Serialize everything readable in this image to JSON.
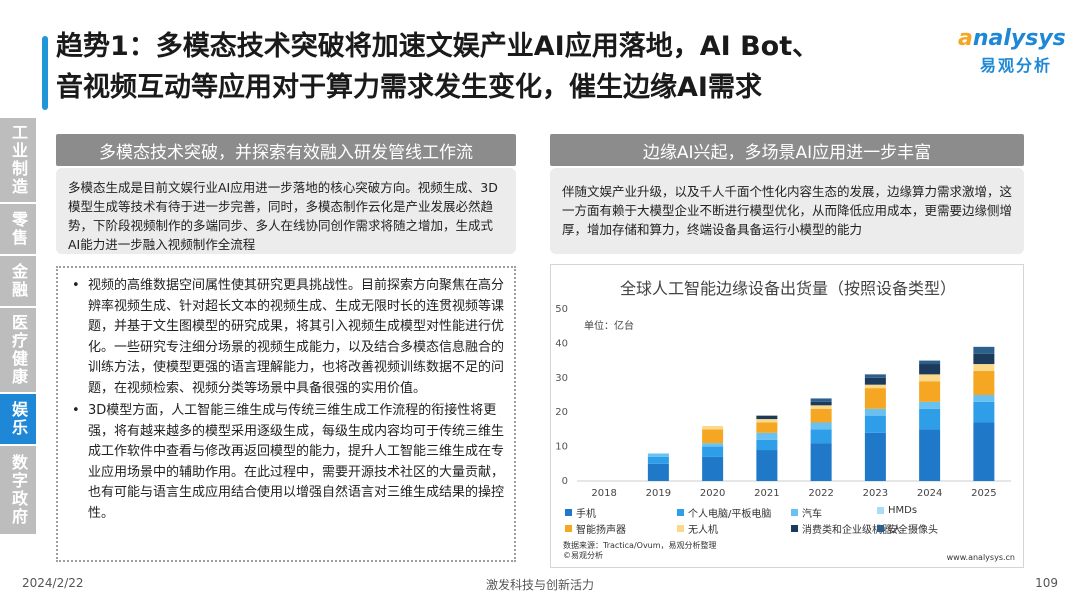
{
  "header": {
    "title_line1": "趋势1：多模态技术突破将加速文娱产业AI应用落地，AI Bot、",
    "title_line2": "音视频互动等应用对于算力需求发生变化，催生边缘AI需求"
  },
  "logo": {
    "brand_a": "a",
    "brand_rest": "nalysys",
    "sub": "易观分析"
  },
  "sidebar": {
    "items": [
      {
        "label": "工业制造",
        "active": false
      },
      {
        "label": "零售",
        "active": false
      },
      {
        "label": "金融",
        "active": false
      },
      {
        "label": "医疗健康",
        "active": false
      },
      {
        "label": "娱乐",
        "active": true
      },
      {
        "label": "数字政府",
        "active": false
      }
    ]
  },
  "left": {
    "heading": "多模态技术突破，并探索有效融入研发管线工作流",
    "intro": "多模态生成是目前文娱行业AI应用进一步落地的核心突破方向。视频生成、3D模型生成等技术有待于进一步完善，同时，多模态制作云化是产业发展必然趋势，下阶段视频制作的多端同步、多人在线协同创作需求将随之增加，生成式AI能力进一步融入视频制作全流程",
    "bullets": [
      "视频的高维数据空间属性使其研究更具挑战性。目前探索方向聚焦在高分辨率视频生成、针对超长文本的视频生成、生成无限时长的连贯视频等课题，并基于文生图模型的研究成果，将其引入视频生成模型对性能进行优化。一些研究专注细分场景的视频生成能力，以及结合多模态信息融合的训练方法，使模型更强的语言理解能力，也将改善视频训练数据不足的问题，在视频检索、视频分类等场景中具备很强的实用价值。",
      "3D模型方面，人工智能三维生成与传统三维生成工作流程的衔接性将更强，将有越来越多的模型采用逐级生成，每级生成内容均可于传统三维生成工作软件中查看与修改再返回模型的能力，提升人工智能三维生成在专业应用场景中的辅助作用。在此过程中，需要开源技术社区的大量贡献，也有可能与语言生成应用结合使用以增强自然语言对三维生成结果的操控性。"
    ]
  },
  "right": {
    "heading": "边缘AI兴起，多场景AI应用进一步丰富",
    "intro": "伴随文娱产业升级，以及千人千面个性化内容生态的发展，边缘算力需求激增，这一方面有赖于大模型企业不断进行模型优化，从而降低应用成本，更需要边缘侧增厚，增加存储和算力，终端设备具备运行小模型的能力"
  },
  "chart_data": {
    "type": "bar",
    "stacked": true,
    "title": "全球人工智能边缘设备出货量（按照设备类型）",
    "unit_label": "单位：亿台",
    "categories": [
      "2018",
      "2019",
      "2020",
      "2021",
      "2022",
      "2023",
      "2024",
      "2025"
    ],
    "ylim": [
      0,
      50
    ],
    "yticks": [
      "0",
      "10",
      "20",
      "30",
      "40",
      "50"
    ],
    "series": [
      {
        "name": "手机",
        "color": "#1f78c8",
        "values": [
          0,
          5,
          7,
          9,
          11,
          14,
          15,
          17
        ]
      },
      {
        "name": "个人电脑/平板电脑",
        "color": "#2e9ee8",
        "values": [
          0,
          2,
          3,
          3,
          4,
          5,
          6,
          6
        ]
      },
      {
        "name": "汽车",
        "color": "#68c1f0",
        "values": [
          0,
          1,
          1,
          2,
          2,
          2,
          2,
          2
        ]
      },
      {
        "name": "HMDs",
        "color": "#a9dcf7",
        "values": [
          0,
          0,
          0,
          0,
          0,
          0,
          0,
          0
        ]
      },
      {
        "name": "智能扬声器",
        "color": "#f5a623",
        "values": [
          0,
          0,
          4,
          3,
          4,
          6,
          6,
          7
        ]
      },
      {
        "name": "无人机",
        "color": "#fcd88a",
        "values": [
          0,
          0,
          1,
          1,
          1,
          1,
          2,
          2
        ]
      },
      {
        "name": "消费类和企业级机器人",
        "color": "#1b3a5c",
        "values": [
          0,
          0,
          0,
          1,
          1,
          2,
          3,
          3
        ]
      },
      {
        "name": "安全摄像头",
        "color": "#2d5f8c",
        "values": [
          0,
          0,
          0,
          0,
          1,
          1,
          1,
          2
        ]
      }
    ],
    "grid": false,
    "legend_position": "bottom",
    "source": "数据来源：Tractica/Ovum，易观分析整理",
    "copyright": "©易观分析",
    "site": "www.analysys.cn"
  },
  "footer": {
    "date": "2024/2/22",
    "center": "激发科技与创新活力",
    "page": "109"
  }
}
